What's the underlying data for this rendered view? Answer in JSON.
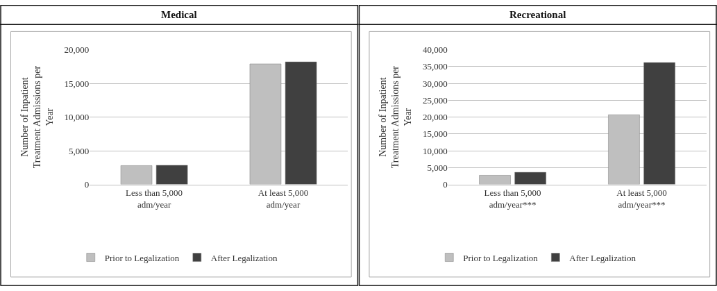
{
  "chart_data": [
    {
      "type": "bar",
      "title": "Medical",
      "ylabel": "Number of Inpatient Treatment Admissions per Year",
      "categories": [
        "Less than 5,000 adm/year",
        "At least 5,000 adm/year"
      ],
      "series": [
        {
          "name": "Prior to Legalization",
          "color": "#bfbfbf",
          "values": [
            2800,
            17900
          ]
        },
        {
          "name": "After Legalization",
          "color": "#404040",
          "values": [
            2850,
            18200
          ]
        }
      ],
      "ylim": [
        0,
        20000
      ],
      "yticks": [
        0,
        {
          "value": 5000,
          "label": "5,000"
        },
        {
          "value": 10000,
          "label": "10,000"
        },
        {
          "value": 15000,
          "label": "15,000"
        },
        {
          "value": 20000,
          "label": "20,000"
        }
      ],
      "grid": "y",
      "legend": "bottom"
    },
    {
      "type": "bar",
      "title": "Recreational",
      "ylabel": "Number of Inpatient Treatment Admissions per Year",
      "categories": [
        "Less than 5,000 adm/year***",
        "At least 5,000 adm/year***"
      ],
      "series": [
        {
          "name": "Prior to Legalization",
          "color": "#bfbfbf",
          "values": [
            2700,
            20700
          ]
        },
        {
          "name": "After Legalization",
          "color": "#404040",
          "values": [
            3600,
            36200
          ]
        }
      ],
      "ylim": [
        0,
        40000
      ],
      "yticks": [
        0,
        {
          "value": 5000,
          "label": "5,000"
        },
        {
          "value": 10000,
          "label": "10,000"
        },
        {
          "value": 15000,
          "label": "15,000"
        },
        {
          "value": 20000,
          "label": "20,000"
        },
        {
          "value": 25000,
          "label": "25,000"
        },
        {
          "value": 30000,
          "label": "30,000"
        },
        {
          "value": 35000,
          "label": "35,000"
        },
        {
          "value": 40000,
          "label": "40,000"
        }
      ],
      "grid": "y",
      "legend": "bottom"
    }
  ]
}
